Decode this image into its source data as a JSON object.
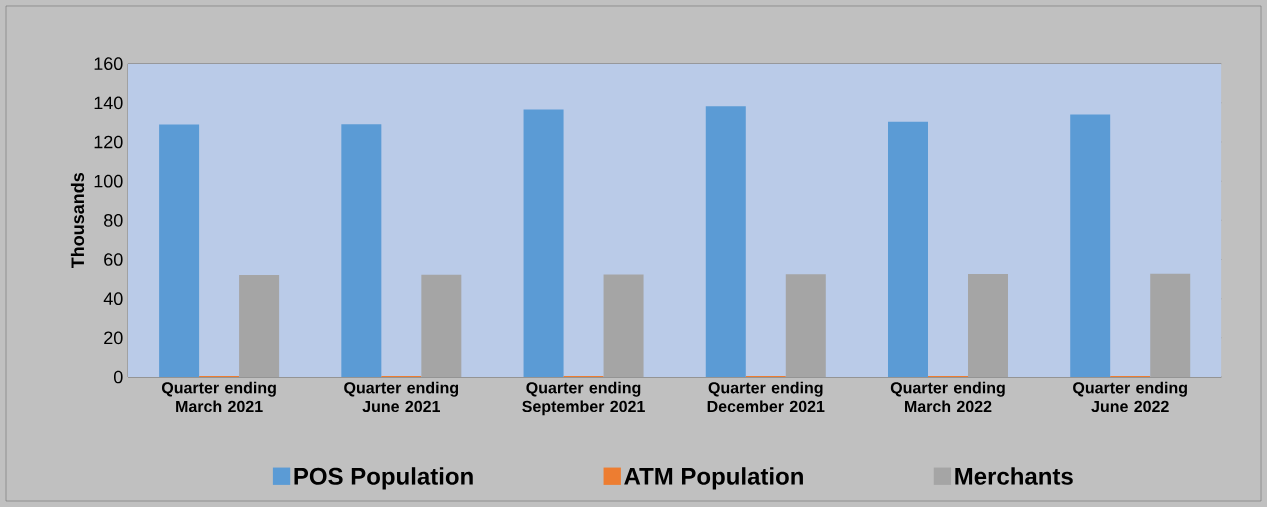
{
  "chart_data": {
    "type": "bar",
    "ylabel": "Thousands",
    "categories": [
      "Quarter ending March 2021",
      "Quarter ending June 2021",
      "Quarter ending September 2021",
      "Quarter ending December 2021",
      "Quarter ending March 2022",
      "Quarter ending June 2022"
    ],
    "series": [
      {
        "name": "POS Population",
        "color": "#5b9bd5",
        "values": [
          128.9,
          129,
          136.6,
          138.2,
          130.4,
          134
        ]
      },
      {
        "name": "ATM Population",
        "color": "#ed7d31",
        "values": [
          0.5,
          0.5,
          0.5,
          0.5,
          0.5,
          0.5
        ]
      },
      {
        "name": "Merchants",
        "color": "#a5a5a5",
        "values": [
          52.1,
          52.2,
          52.3,
          52.5,
          52.6,
          52.7
        ]
      }
    ],
    "ylim": [
      0,
      160
    ],
    "yticks": [
      0,
      20,
      40,
      60,
      80,
      100,
      120,
      140,
      160
    ],
    "grid": "y",
    "legend": "bottom"
  }
}
